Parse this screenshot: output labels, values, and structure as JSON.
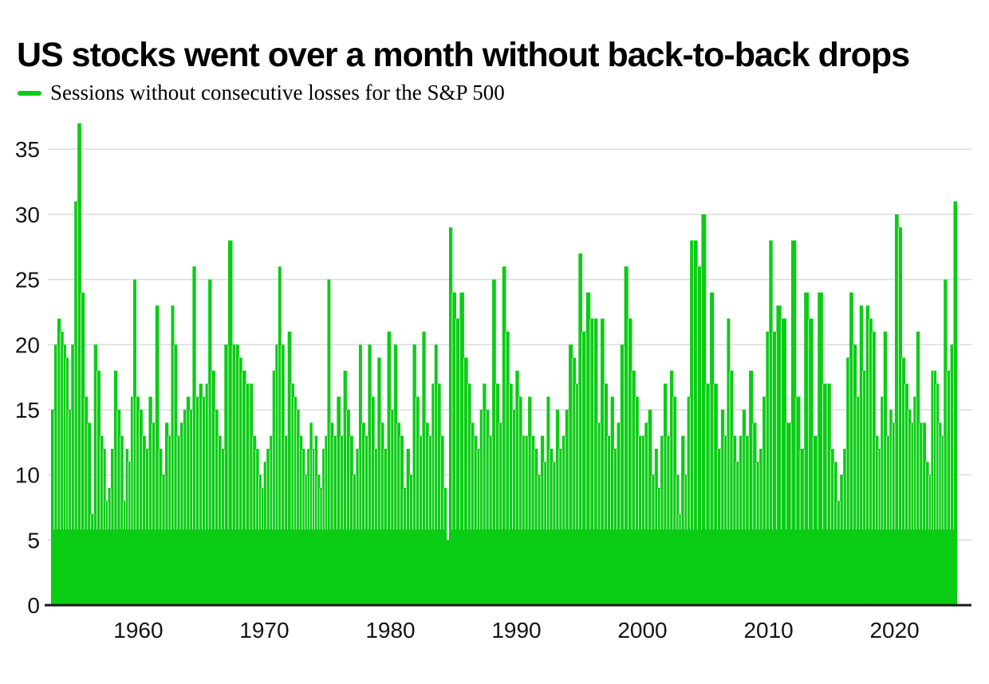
{
  "page": {
    "background": "#ffffff"
  },
  "chart_data": {
    "type": "bar",
    "title": "US stocks went over a month without back-to-back drops",
    "legend": "Sessions without consecutive losses for the S&P 500",
    "xlabel": "",
    "ylabel": "",
    "grid": true,
    "legend_position": "top-left",
    "bar_color": "#0acc14",
    "grid_color": "#dcdcdc",
    "axis_color": "#191919",
    "label_color": "#141414",
    "ylim": [
      0,
      37.5
    ],
    "xlim": [
      1952.95,
      2026.1
    ],
    "y_ticks": [
      0,
      5,
      10,
      15,
      20,
      25,
      30,
      35
    ],
    "x_ticks": [
      1960,
      1970,
      1980,
      1990,
      2000,
      2010,
      2020
    ],
    "units": "trading sessions",
    "max_point": {
      "year": 1955,
      "value": 37
    },
    "last_point": {
      "year": 2025,
      "value": 31
    },
    "points": [
      [
        1953.2,
        15
      ],
      [
        1953.45,
        20
      ],
      [
        1953.7,
        22
      ],
      [
        1953.95,
        21
      ],
      [
        1954.15,
        20
      ],
      [
        1954.35,
        19
      ],
      [
        1954.55,
        15
      ],
      [
        1954.8,
        20
      ],
      [
        1955.05,
        31
      ],
      [
        1955.3,
        37
      ],
      [
        1955.6,
        24
      ],
      [
        1955.85,
        16
      ],
      [
        1956.1,
        14
      ],
      [
        1956.35,
        7
      ],
      [
        1956.6,
        20
      ],
      [
        1956.85,
        18
      ],
      [
        1957.1,
        13
      ],
      [
        1957.3,
        12
      ],
      [
        1957.5,
        8
      ],
      [
        1957.7,
        9
      ],
      [
        1957.95,
        12
      ],
      [
        1958.2,
        18
      ],
      [
        1958.45,
        15
      ],
      [
        1958.7,
        13
      ],
      [
        1958.9,
        8
      ],
      [
        1959.1,
        12
      ],
      [
        1959.3,
        11
      ],
      [
        1959.5,
        16
      ],
      [
        1959.7,
        25
      ],
      [
        1959.95,
        16
      ],
      [
        1960.2,
        15
      ],
      [
        1960.45,
        13
      ],
      [
        1960.7,
        12
      ],
      [
        1960.95,
        16
      ],
      [
        1961.2,
        14
      ],
      [
        1961.5,
        23
      ],
      [
        1961.75,
        12
      ],
      [
        1962.0,
        10
      ],
      [
        1962.25,
        14
      ],
      [
        1962.5,
        13
      ],
      [
        1962.7,
        23
      ],
      [
        1962.95,
        20
      ],
      [
        1963.2,
        13
      ],
      [
        1963.45,
        14
      ],
      [
        1963.7,
        15
      ],
      [
        1963.95,
        16
      ],
      [
        1964.2,
        15
      ],
      [
        1964.4,
        26
      ],
      [
        1964.7,
        16
      ],
      [
        1964.95,
        17
      ],
      [
        1965.2,
        16
      ],
      [
        1965.45,
        17
      ],
      [
        1965.65,
        25
      ],
      [
        1965.95,
        18
      ],
      [
        1966.2,
        15
      ],
      [
        1966.45,
        13
      ],
      [
        1966.7,
        12
      ],
      [
        1966.95,
        20
      ],
      [
        1967.3,
        28
      ],
      [
        1967.6,
        20
      ],
      [
        1967.85,
        20
      ],
      [
        1968.1,
        19
      ],
      [
        1968.35,
        18
      ],
      [
        1968.7,
        17
      ],
      [
        1968.95,
        17
      ],
      [
        1969.2,
        13
      ],
      [
        1969.45,
        12
      ],
      [
        1969.65,
        10
      ],
      [
        1969.85,
        9
      ],
      [
        1970.05,
        11
      ],
      [
        1970.3,
        12
      ],
      [
        1970.55,
        13
      ],
      [
        1970.75,
        18
      ],
      [
        1971.0,
        20
      ],
      [
        1971.2,
        26
      ],
      [
        1971.45,
        20
      ],
      [
        1971.7,
        13
      ],
      [
        1972.0,
        21
      ],
      [
        1972.25,
        17
      ],
      [
        1972.45,
        16
      ],
      [
        1972.65,
        15
      ],
      [
        1972.9,
        13
      ],
      [
        1973.1,
        12
      ],
      [
        1973.3,
        10
      ],
      [
        1973.5,
        12
      ],
      [
        1973.7,
        14
      ],
      [
        1973.9,
        12
      ],
      [
        1974.1,
        13
      ],
      [
        1974.3,
        10
      ],
      [
        1974.5,
        9
      ],
      [
        1974.7,
        12
      ],
      [
        1974.9,
        13
      ],
      [
        1975.1,
        25
      ],
      [
        1975.35,
        14
      ],
      [
        1975.6,
        13
      ],
      [
        1975.9,
        16
      ],
      [
        1976.15,
        13
      ],
      [
        1976.4,
        18
      ],
      [
        1976.65,
        15
      ],
      [
        1976.9,
        13
      ],
      [
        1977.15,
        10
      ],
      [
        1977.4,
        12
      ],
      [
        1977.6,
        20
      ],
      [
        1977.85,
        14
      ],
      [
        1978.1,
        13
      ],
      [
        1978.35,
        20
      ],
      [
        1978.6,
        16
      ],
      [
        1978.85,
        12
      ],
      [
        1979.1,
        19
      ],
      [
        1979.35,
        14
      ],
      [
        1979.6,
        12
      ],
      [
        1979.9,
        21
      ],
      [
        1980.15,
        15
      ],
      [
        1980.4,
        20
      ],
      [
        1980.65,
        14
      ],
      [
        1980.9,
        13
      ],
      [
        1981.15,
        9
      ],
      [
        1981.4,
        12
      ],
      [
        1981.65,
        10
      ],
      [
        1981.9,
        20
      ],
      [
        1982.15,
        16
      ],
      [
        1982.4,
        13
      ],
      [
        1982.65,
        21
      ],
      [
        1982.9,
        14
      ],
      [
        1983.15,
        13
      ],
      [
        1983.4,
        17
      ],
      [
        1983.6,
        20
      ],
      [
        1983.85,
        17
      ],
      [
        1984.1,
        13
      ],
      [
        1984.35,
        9
      ],
      [
        1984.55,
        5
      ],
      [
        1984.75,
        29
      ],
      [
        1985.05,
        24
      ],
      [
        1985.35,
        22
      ],
      [
        1985.65,
        24
      ],
      [
        1986.0,
        19
      ],
      [
        1986.25,
        17
      ],
      [
        1986.5,
        14
      ],
      [
        1986.75,
        13
      ],
      [
        1987.0,
        12
      ],
      [
        1987.2,
        15
      ],
      [
        1987.45,
        17
      ],
      [
        1987.7,
        15
      ],
      [
        1987.95,
        13
      ],
      [
        1988.2,
        25
      ],
      [
        1988.5,
        17
      ],
      [
        1988.75,
        14
      ],
      [
        1989.0,
        26
      ],
      [
        1989.3,
        21
      ],
      [
        1989.55,
        17
      ],
      [
        1989.8,
        15
      ],
      [
        1990.05,
        18
      ],
      [
        1990.3,
        16
      ],
      [
        1990.55,
        13
      ],
      [
        1990.8,
        13
      ],
      [
        1991.05,
        16
      ],
      [
        1991.3,
        13
      ],
      [
        1991.55,
        12
      ],
      [
        1991.8,
        10
      ],
      [
        1992.05,
        13
      ],
      [
        1992.3,
        11
      ],
      [
        1992.5,
        16
      ],
      [
        1992.75,
        12
      ],
      [
        1993.0,
        11
      ],
      [
        1993.25,
        15
      ],
      [
        1993.5,
        12
      ],
      [
        1993.75,
        13
      ],
      [
        1994.0,
        15
      ],
      [
        1994.3,
        20
      ],
      [
        1994.6,
        19
      ],
      [
        1994.8,
        17
      ],
      [
        1995.05,
        27
      ],
      [
        1995.35,
        21
      ],
      [
        1995.7,
        24
      ],
      [
        1996.0,
        22
      ],
      [
        1996.3,
        22
      ],
      [
        1996.55,
        14
      ],
      [
        1996.8,
        22
      ],
      [
        1997.1,
        17
      ],
      [
        1997.35,
        13
      ],
      [
        1997.6,
        16
      ],
      [
        1997.85,
        12
      ],
      [
        1998.1,
        14
      ],
      [
        1998.4,
        20
      ],
      [
        1998.7,
        26
      ],
      [
        1999.0,
        22
      ],
      [
        1999.3,
        18
      ],
      [
        1999.55,
        16
      ],
      [
        1999.8,
        13
      ],
      [
        2000.05,
        13
      ],
      [
        2000.3,
        14
      ],
      [
        2000.6,
        15
      ],
      [
        2000.85,
        10
      ],
      [
        2001.1,
        12
      ],
      [
        2001.3,
        9
      ],
      [
        2001.55,
        13
      ],
      [
        2001.8,
        17
      ],
      [
        2002.05,
        13
      ],
      [
        2002.3,
        18
      ],
      [
        2002.55,
        16
      ],
      [
        2002.8,
        10
      ],
      [
        2002.95,
        7
      ],
      [
        2003.2,
        13
      ],
      [
        2003.45,
        10
      ],
      [
        2003.65,
        16
      ],
      [
        2003.9,
        28
      ],
      [
        2004.2,
        28
      ],
      [
        2004.5,
        26
      ],
      [
        2004.85,
        30
      ],
      [
        2005.2,
        17
      ],
      [
        2005.5,
        24
      ],
      [
        2005.8,
        17
      ],
      [
        2006.1,
        12
      ],
      [
        2006.35,
        15
      ],
      [
        2006.6,
        13
      ],
      [
        2006.8,
        22
      ],
      [
        2007.05,
        18
      ],
      [
        2007.3,
        13
      ],
      [
        2007.55,
        11
      ],
      [
        2007.8,
        13
      ],
      [
        2008.05,
        15
      ],
      [
        2008.3,
        13
      ],
      [
        2008.6,
        18
      ],
      [
        2008.9,
        14
      ],
      [
        2009.15,
        11
      ],
      [
        2009.4,
        12
      ],
      [
        2009.65,
        16
      ],
      [
        2009.95,
        21
      ],
      [
        2010.15,
        28
      ],
      [
        2010.45,
        21
      ],
      [
        2010.8,
        23
      ],
      [
        2011.2,
        22
      ],
      [
        2011.6,
        14
      ],
      [
        2012.0,
        28
      ],
      [
        2012.35,
        16
      ],
      [
        2012.65,
        12
      ],
      [
        2013.0,
        24
      ],
      [
        2013.35,
        22
      ],
      [
        2013.7,
        13
      ],
      [
        2014.1,
        24
      ],
      [
        2014.5,
        17
      ],
      [
        2014.8,
        17
      ],
      [
        2015.05,
        12
      ],
      [
        2015.3,
        11
      ],
      [
        2015.55,
        8
      ],
      [
        2015.8,
        10
      ],
      [
        2016.05,
        12
      ],
      [
        2016.3,
        19
      ],
      [
        2016.55,
        24
      ],
      [
        2016.85,
        20
      ],
      [
        2017.1,
        16
      ],
      [
        2017.35,
        23
      ],
      [
        2017.6,
        18
      ],
      [
        2017.85,
        23
      ],
      [
        2018.1,
        22
      ],
      [
        2018.35,
        21
      ],
      [
        2018.6,
        13
      ],
      [
        2018.8,
        12
      ],
      [
        2019.0,
        16
      ],
      [
        2019.25,
        21
      ],
      [
        2019.5,
        13
      ],
      [
        2019.7,
        15
      ],
      [
        2019.9,
        14
      ],
      [
        2020.15,
        30
      ],
      [
        2020.45,
        29
      ],
      [
        2020.7,
        19
      ],
      [
        2020.95,
        17
      ],
      [
        2021.2,
        15
      ],
      [
        2021.4,
        14
      ],
      [
        2021.6,
        16
      ],
      [
        2021.85,
        21
      ],
      [
        2022.1,
        14
      ],
      [
        2022.35,
        14
      ],
      [
        2022.6,
        11
      ],
      [
        2022.8,
        10
      ],
      [
        2023.0,
        18
      ],
      [
        2023.2,
        18
      ],
      [
        2023.4,
        17
      ],
      [
        2023.6,
        14
      ],
      [
        2023.8,
        13
      ],
      [
        2024.0,
        25
      ],
      [
        2024.3,
        18
      ],
      [
        2024.55,
        20
      ],
      [
        2024.8,
        31
      ]
    ]
  }
}
